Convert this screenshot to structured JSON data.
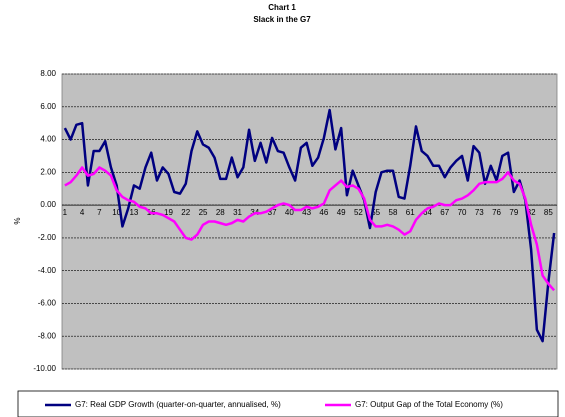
{
  "chart_data": {
    "type": "line",
    "title": "Chart 1",
    "subtitle": "Slack in the G7",
    "y_label": "%",
    "categories": [
      1,
      null,
      null,
      4,
      null,
      null,
      7,
      null,
      null,
      10,
      null,
      null,
      13,
      null,
      null,
      16,
      null,
      null,
      19,
      null,
      null,
      22,
      null,
      null,
      25,
      null,
      null,
      28,
      null,
      null,
      31,
      null,
      null,
      34,
      null,
      null,
      37,
      null,
      null,
      40,
      null,
      null,
      43,
      null,
      null,
      46,
      null,
      null,
      49,
      null,
      null,
      52,
      null,
      null,
      55,
      null,
      null,
      58,
      null,
      null,
      61,
      null,
      null,
      64,
      null,
      null,
      67,
      null,
      null,
      70,
      null,
      null,
      73,
      null,
      null,
      76,
      null,
      null,
      79,
      null,
      null,
      82,
      null,
      null,
      85,
      null
    ],
    "series": [
      {
        "name": "G7: Real GDP Growth (quarter-on-quarter, annualised, %)",
        "color": "#000080",
        "values": [
          4.7,
          4.0,
          4.9,
          5.0,
          1.2,
          3.3,
          3.3,
          3.9,
          2.3,
          1.2,
          -1.3,
          -0.2,
          1.2,
          1.0,
          2.3,
          3.2,
          1.5,
          2.3,
          1.9,
          0.8,
          0.7,
          1.3,
          3.3,
          4.5,
          3.7,
          3.5,
          2.9,
          1.6,
          1.6,
          2.9,
          1.7,
          2.3,
          4.6,
          2.7,
          3.8,
          2.6,
          4.1,
          3.3,
          3.2,
          2.3,
          1.5,
          3.5,
          3.8,
          2.4,
          2.9,
          4.1,
          5.8,
          3.4,
          4.7,
          0.6,
          2.1,
          1.2,
          0.3,
          -1.4,
          0.8,
          2.0,
          2.1,
          2.1,
          0.5,
          0.4,
          2.4,
          4.8,
          3.3,
          3.0,
          2.4,
          2.4,
          1.7,
          2.3,
          2.7,
          3.0,
          1.5,
          3.6,
          3.2,
          1.3,
          2.4,
          1.5,
          3.0,
          3.2,
          0.8,
          1.5,
          0.3,
          -2.7,
          -7.6,
          -8.3,
          -4.7,
          -1.7
        ]
      },
      {
        "name": "G7: Output Gap of the Total Economy (%)",
        "color": "#ff00ff",
        "values": [
          1.2,
          1.4,
          1.8,
          2.3,
          1.8,
          1.9,
          2.3,
          2.1,
          1.8,
          0.9,
          0.5,
          0.3,
          0.2,
          -0.1,
          -0.2,
          -0.5,
          -0.5,
          -0.6,
          -0.8,
          -1.0,
          -1.5,
          -2.0,
          -2.1,
          -1.8,
          -1.2,
          -1.0,
          -1.0,
          -1.1,
          -1.2,
          -1.1,
          -0.9,
          -1.0,
          -0.7,
          -0.5,
          -0.5,
          -0.4,
          -0.2,
          0.0,
          0.1,
          0.0,
          -0.3,
          -0.3,
          -0.1,
          -0.2,
          -0.1,
          0.1,
          0.9,
          1.2,
          1.5,
          1.1,
          1.2,
          1.0,
          0.4,
          -0.9,
          -1.3,
          -1.3,
          -1.2,
          -1.3,
          -1.5,
          -1.8,
          -1.6,
          -0.9,
          -0.5,
          -0.2,
          -0.1,
          0.1,
          0.0,
          0.0,
          0.3,
          0.4,
          0.6,
          0.9,
          1.3,
          1.4,
          1.4,
          1.4,
          1.6,
          2.0,
          1.5,
          1.3,
          0.4,
          -1.2,
          -2.4,
          -4.3,
          -4.8,
          -5.2
        ]
      }
    ],
    "ylim": [
      -10,
      8
    ],
    "yticks": [
      {
        "value": 8,
        "label": "8.00"
      },
      {
        "value": 6,
        "label": "6.00"
      },
      {
        "value": 4,
        "label": "4.00"
      },
      {
        "value": 2,
        "label": "2.00"
      },
      {
        "value": 0,
        "label": "0.00"
      },
      {
        "value": -2,
        "label": "-2.00"
      },
      {
        "value": -4,
        "label": "-4.00"
      },
      {
        "value": -6,
        "label": "-6.00"
      },
      {
        "value": -8,
        "label": "-8.00"
      },
      {
        "value": -10,
        "label": "-10.00"
      }
    ],
    "grid": true,
    "plot_background": "#c0c0c0",
    "legend": "bottom"
  }
}
